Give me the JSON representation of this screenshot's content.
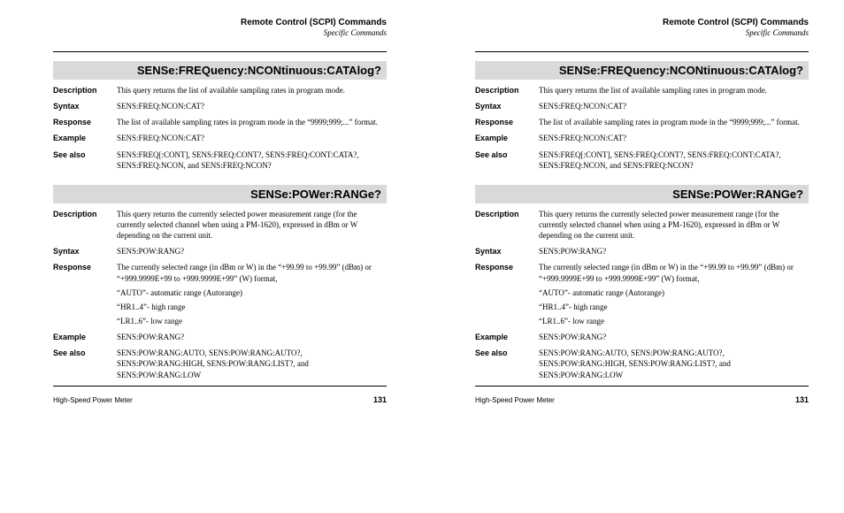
{
  "header": {
    "title": "Remote Control (SCPI) Commands",
    "subtitle": "Specific Commands"
  },
  "section1": {
    "title": "SENSe:FREQuency:NCONtinuous:CATAlog?",
    "rows": {
      "description": {
        "label": "Description",
        "text": "This query returns the list of available sampling rates in program mode."
      },
      "syntax": {
        "label": "Syntax",
        "text": "SENS:FREQ:NCON:CAT?"
      },
      "response": {
        "label": "Response",
        "text": "The list of available sampling rates in program mode in the “9999;999;...” format."
      },
      "example": {
        "label": "Example",
        "text": "SENS:FREQ:NCON:CAT?"
      },
      "seealso": {
        "label": "See also",
        "text": "SENS:FREQ[:CONT], SENS:FREQ:CONT?, SENS:FREQ:CONT:CATA?, SENS:FREQ:NCON, and SENS:FREQ:NCON?"
      }
    }
  },
  "section2": {
    "title": "SENSe:POWer:RANGe?",
    "rows": {
      "description": {
        "label": "Description",
        "text": "This query returns the currently selected power measurement range (for the currently selected channel when using a PM-1620), expressed in dBm or W depending on the current unit."
      },
      "syntax": {
        "label": "Syntax",
        "text": "SENS:POW:RANG?"
      },
      "response": {
        "label": "Response",
        "p1": "The currently selected range (in dBm or W) in the “+99.99 to +99.99” (dBm) or “+999.9999E+99 to +999.9999E+99” (W) format,",
        "p2": "“AUTO”- automatic range (Autorange)",
        "p3": "“HR1..4”- high range",
        "p4": "“LR1..6”- low range"
      },
      "example": {
        "label": "Example",
        "text": "SENS:POW:RANG?"
      },
      "seealso": {
        "label": "See also",
        "text": "SENS:POW:RANG:AUTO, SENS:POW:RANG:AUTO?, SENS:POW:RANG:HIGH, SENS:POW:RANG:LIST?, and SENS:POW:RANG:LOW"
      }
    }
  },
  "footer": {
    "left": "High-Speed Power Meter",
    "page": "131"
  }
}
